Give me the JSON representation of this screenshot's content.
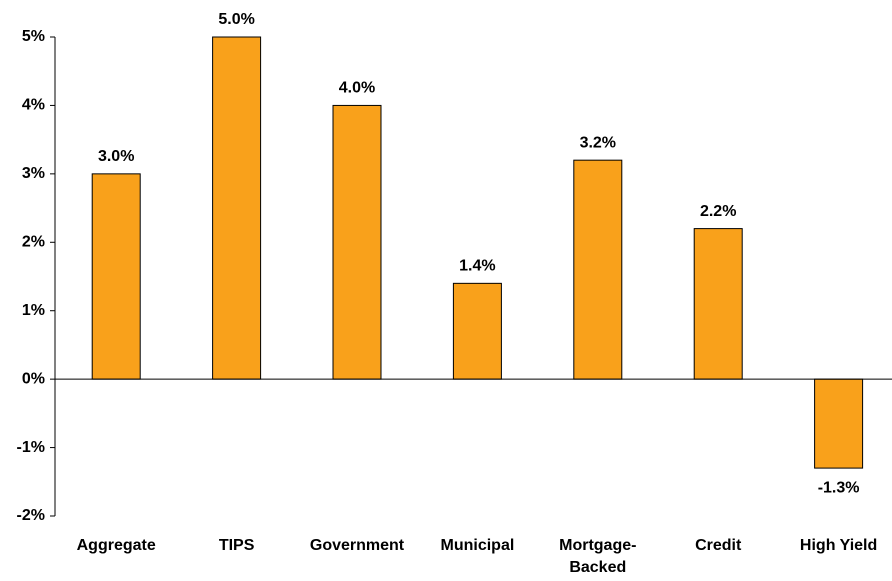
{
  "chart_data": {
    "type": "bar",
    "categories": [
      "Aggregate",
      "TIPS",
      "Government",
      "Municipal",
      "Mortgage-Backed",
      "Credit",
      "High Yield"
    ],
    "values": [
      3.0,
      5.0,
      4.0,
      1.4,
      3.2,
      2.2,
      -1.3
    ],
    "value_labels": [
      "3.0%",
      "5.0%",
      "4.0%",
      "1.4%",
      "3.2%",
      "2.2%",
      "-1.3%"
    ],
    "color": "#f9a11b",
    "ylim": [
      -2,
      5
    ],
    "yticks": [
      {
        "value": -2,
        "label": "-2%"
      },
      {
        "value": -1,
        "label": "-1%"
      },
      {
        "value": 0,
        "label": "0%"
      },
      {
        "value": 1,
        "label": "1%"
      },
      {
        "value": 2,
        "label": "2%"
      },
      {
        "value": 3,
        "label": "3%"
      },
      {
        "value": 4,
        "label": "4%"
      },
      {
        "value": 5,
        "label": "5%"
      }
    ],
    "grid": false
  }
}
